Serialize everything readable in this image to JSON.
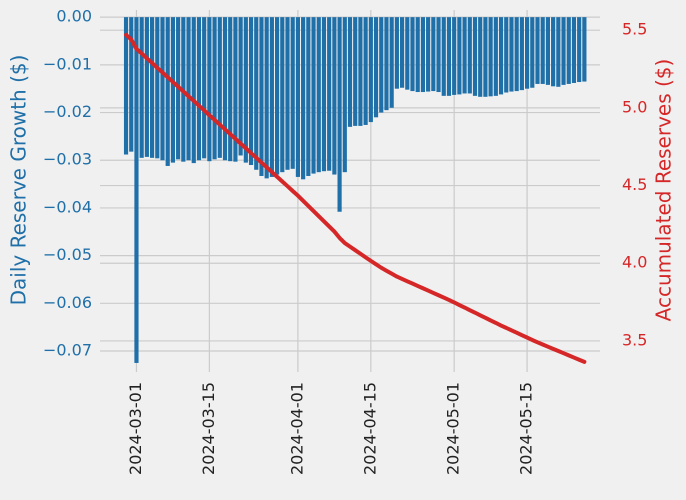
{
  "chart_data": {
    "type": "bar",
    "y_label": "Daily Reserve Growth ($)",
    "y2_label": "Accumulated Reserves ($)",
    "grid": true,
    "background": "#f0f0f0",
    "x": [
      "2024-02-28",
      "2024-02-29",
      "2024-03-01",
      "2024-03-02",
      "2024-03-03",
      "2024-03-04",
      "2024-03-05",
      "2024-03-06",
      "2024-03-07",
      "2024-03-08",
      "2024-03-09",
      "2024-03-10",
      "2024-03-11",
      "2024-03-12",
      "2024-03-13",
      "2024-03-14",
      "2024-03-15",
      "2024-03-16",
      "2024-03-17",
      "2024-03-18",
      "2024-03-19",
      "2024-03-20",
      "2024-03-21",
      "2024-03-22",
      "2024-03-23",
      "2024-03-24",
      "2024-03-25",
      "2024-03-26",
      "2024-03-27",
      "2024-03-28",
      "2024-03-29",
      "2024-03-30",
      "2024-03-31",
      "2024-04-01",
      "2024-04-02",
      "2024-04-03",
      "2024-04-04",
      "2024-04-05",
      "2024-04-06",
      "2024-04-07",
      "2024-04-08",
      "2024-04-09",
      "2024-04-10",
      "2024-04-11",
      "2024-04-12",
      "2024-04-13",
      "2024-04-14",
      "2024-04-15",
      "2024-04-16",
      "2024-04-17",
      "2024-04-18",
      "2024-04-19",
      "2024-04-20",
      "2024-04-21",
      "2024-04-22",
      "2024-04-23",
      "2024-04-24",
      "2024-04-25",
      "2024-04-26",
      "2024-04-27",
      "2024-04-28",
      "2024-04-29",
      "2024-04-30",
      "2024-05-01",
      "2024-05-02",
      "2024-05-03",
      "2024-05-04",
      "2024-05-05",
      "2024-05-06",
      "2024-05-07",
      "2024-05-08",
      "2024-05-09",
      "2024-05-10",
      "2024-05-11",
      "2024-05-12",
      "2024-05-13",
      "2024-05-14",
      "2024-05-15",
      "2024-05-16",
      "2024-05-17",
      "2024-05-18",
      "2024-05-19",
      "2024-05-20",
      "2024-05-21",
      "2024-05-22",
      "2024-05-23",
      "2024-05-24",
      "2024-05-25",
      "2024-05-26"
    ],
    "series": [
      {
        "type": "bar",
        "color": "#1f6fa8",
        "values": [
          -0.0288,
          -0.0282,
          -0.0725,
          -0.0295,
          -0.0293,
          -0.0295,
          -0.0296,
          -0.03,
          -0.0312,
          -0.0305,
          -0.0298,
          -0.0303,
          -0.03,
          -0.0306,
          -0.03,
          -0.0296,
          -0.0302,
          -0.0298,
          -0.0295,
          -0.03,
          -0.0302,
          -0.0303,
          -0.029,
          -0.0305,
          -0.031,
          -0.032,
          -0.0333,
          -0.0338,
          -0.0335,
          -0.033,
          -0.0325,
          -0.032,
          -0.0318,
          -0.0335,
          -0.034,
          -0.0333,
          -0.0328,
          -0.0325,
          -0.0323,
          -0.0322,
          -0.033,
          -0.0408,
          -0.0325,
          -0.023,
          -0.0228,
          -0.0228,
          -0.0226,
          -0.022,
          -0.021,
          -0.02,
          -0.0195,
          -0.019,
          -0.015,
          -0.0148,
          -0.0152,
          -0.0155,
          -0.0157,
          -0.0157,
          -0.0156,
          -0.0155,
          -0.0157,
          -0.0165,
          -0.0165,
          -0.0163,
          -0.0162,
          -0.016,
          -0.016,
          -0.0165,
          -0.0167,
          -0.0167,
          -0.0166,
          -0.0165,
          -0.0162,
          -0.0158,
          -0.0156,
          -0.0155,
          -0.0153,
          -0.015,
          -0.0148,
          -0.014,
          -0.014,
          -0.0142,
          -0.0145,
          -0.0146,
          -0.0142,
          -0.014,
          -0.0138,
          -0.0136,
          -0.0135
        ]
      },
      {
        "type": "line",
        "axis": "y2",
        "color": "#d62728",
        "values": [
          5.47,
          5.44,
          5.38,
          5.35,
          5.319,
          5.289,
          5.258,
          5.228,
          5.197,
          5.167,
          5.136,
          5.106,
          5.075,
          5.045,
          5.014,
          4.984,
          4.953,
          4.923,
          4.892,
          4.862,
          4.831,
          4.801,
          4.77,
          4.74,
          4.709,
          4.679,
          4.648,
          4.618,
          4.587,
          4.557,
          4.526,
          4.496,
          4.465,
          4.435,
          4.402,
          4.369,
          4.336,
          4.303,
          4.27,
          4.237,
          4.204,
          4.163,
          4.13,
          4.107,
          4.084,
          4.061,
          4.038,
          4.015,
          3.993,
          3.971,
          3.952,
          3.933,
          3.914,
          3.899,
          3.884,
          3.869,
          3.854,
          3.839,
          3.824,
          3.809,
          3.794,
          3.779,
          3.764,
          3.748,
          3.731,
          3.715,
          3.698,
          3.682,
          3.665,
          3.649,
          3.632,
          3.616,
          3.599,
          3.584,
          3.568,
          3.553,
          3.537,
          3.522,
          3.506,
          3.491,
          3.477,
          3.463,
          3.449,
          3.435,
          3.421,
          3.407,
          3.393,
          3.379,
          3.365
        ]
      }
    ],
    "xlim": [
      "2024-02-23",
      "2024-05-29"
    ],
    "xticks": [
      "2024-03-01",
      "2024-03-15",
      "2024-04-01",
      "2024-04-15",
      "2024-05-01",
      "2024-05-15"
    ],
    "ylim": [
      -0.0744,
      0.0015
    ],
    "yticks": [
      {
        "value": 0,
        "label": "0.00"
      },
      {
        "value": -0.01,
        "label": "−0.01"
      },
      {
        "value": -0.02,
        "label": "−0.02"
      },
      {
        "value": -0.03,
        "label": "−0.03"
      },
      {
        "value": -0.04,
        "label": "−0.04"
      },
      {
        "value": -0.05,
        "label": "−0.05"
      },
      {
        "value": -0.06,
        "label": "−0.06"
      },
      {
        "value": -0.07,
        "label": "−0.07"
      }
    ],
    "y2lim": [
      3.3,
      5.63
    ],
    "y2ticks": [
      3.5,
      {
        "value": 4,
        "label": "4.0"
      },
      4.5,
      {
        "value": 5,
        "label": "5.0"
      },
      5.5
    ]
  }
}
